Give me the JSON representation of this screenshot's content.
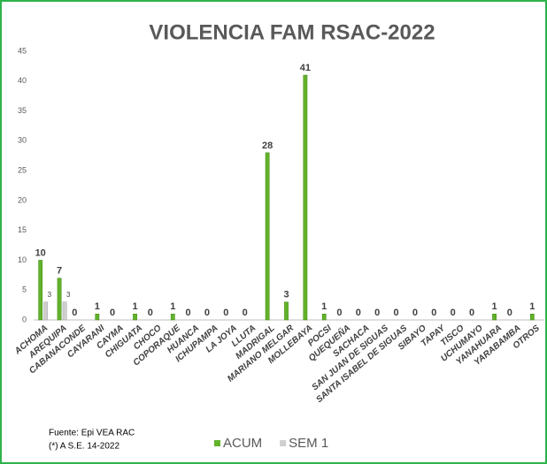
{
  "chart_data": {
    "type": "bar",
    "title": "VIOLENCIA FAM RSAC-2022",
    "categories": [
      "ACHOMA",
      "AREQUIPA",
      "CABANACONDE",
      "CAYARANI",
      "CAYMA",
      "CHIGUATA",
      "CHOCO",
      "COPORAQUE",
      "HUANCA",
      "ICHUPAMPA",
      "LA JOYA",
      "LLUTA",
      "MADRIGAL",
      "MARIANO MELGAR",
      "MOLLEBAYA",
      "POCSI",
      "QUEQUEÑA",
      "SACHACA",
      "SAN JUAN DE SIGUAS",
      "SANTA ISABEL DE SIGUAS",
      "SIBAYO",
      "TAPAY",
      "TISCO",
      "UCHUMAYO",
      "YANAHUARA",
      "YARABAMBA",
      "OTROS"
    ],
    "series": [
      {
        "name": "ACUM",
        "color": "#62b22a",
        "values": [
          10,
          7,
          0,
          1,
          0,
          1,
          0,
          1,
          0,
          0,
          0,
          0,
          28,
          3,
          41,
          1,
          0,
          0,
          0,
          0,
          0,
          0,
          0,
          0,
          1,
          0,
          1
        ]
      },
      {
        "name": "SEM 1",
        "color": "#cfcfcf",
        "values": [
          3,
          3,
          0,
          0,
          0,
          0,
          0,
          0,
          0,
          0,
          0,
          0,
          0,
          0,
          0,
          0,
          0,
          0,
          0,
          0,
          0,
          0,
          0,
          0,
          0,
          0,
          0
        ]
      }
    ],
    "ylim": [
      0,
      45
    ],
    "yticks": [
      0,
      5,
      10,
      15,
      20,
      25,
      30,
      35,
      40,
      45
    ],
    "grid": false,
    "legend": "bottom",
    "footnotes": [
      "Fuente: Epi VEA RAC",
      "(*) A S.E. 14-2022"
    ]
  }
}
